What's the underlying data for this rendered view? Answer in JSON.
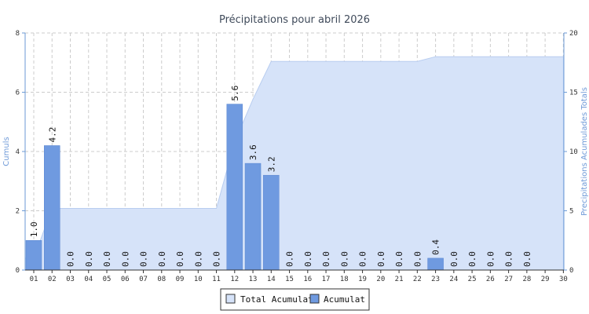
{
  "chart_data": {
    "type": "bar",
    "title": "Précipitations pour abril 2026",
    "ylabel_left": "Cumuls",
    "ylabel_right": "Precipitations Acumulades Totals",
    "ylim_left": [
      0,
      8
    ],
    "yticks_left": [
      0,
      2,
      4,
      6,
      8
    ],
    "ylim_right": [
      0,
      20
    ],
    "yticks_right": [
      0,
      5,
      10,
      15,
      20
    ],
    "grid": true,
    "legend_position": "bottom-center",
    "categories": [
      "01",
      "02",
      "03",
      "04",
      "05",
      "06",
      "07",
      "08",
      "09",
      "10",
      "11",
      "12",
      "13",
      "14",
      "15",
      "16",
      "17",
      "18",
      "19",
      "20",
      "21",
      "22",
      "23",
      "24",
      "25",
      "26",
      "27",
      "28",
      "29",
      "30"
    ],
    "series": [
      {
        "name": "Total Acumulat",
        "kind": "area",
        "axis": "right",
        "color": "#d6e3f9",
        "values": [
          1.0,
          5.2,
          5.2,
          5.2,
          5.2,
          5.2,
          5.2,
          5.2,
          5.2,
          5.2,
          5.2,
          10.8,
          14.4,
          17.6,
          17.6,
          17.6,
          17.6,
          17.6,
          17.6,
          17.6,
          17.6,
          17.6,
          18.0,
          18.0,
          18.0,
          18.0,
          18.0,
          18.0,
          18.0,
          18.0
        ]
      },
      {
        "name": "Acumulat",
        "kind": "bar",
        "axis": "left",
        "color": "#6f9ae0",
        "values": [
          1.0,
          4.2,
          0,
          0,
          0,
          0,
          0,
          0,
          0,
          0,
          0,
          5.6,
          3.6,
          3.2,
          0,
          0,
          0,
          0,
          0,
          0,
          0,
          0,
          0.4,
          0,
          0,
          0,
          0,
          0,
          null,
          null
        ],
        "labels": [
          "1.0",
          "4.2",
          "0.0",
          "0.0",
          "0.0",
          "0.0",
          "0.0",
          "0.0",
          "0.0",
          "0.0",
          "0.0",
          "5.6",
          "3.6",
          "3.2",
          "0.0",
          "0.0",
          "0.0",
          "0.0",
          "0.0",
          "0.0",
          "0.0",
          "0.0",
          "0.4",
          "0.0",
          "0.0",
          "0.0",
          "0.0",
          "0.0",
          "",
          ""
        ]
      }
    ]
  }
}
